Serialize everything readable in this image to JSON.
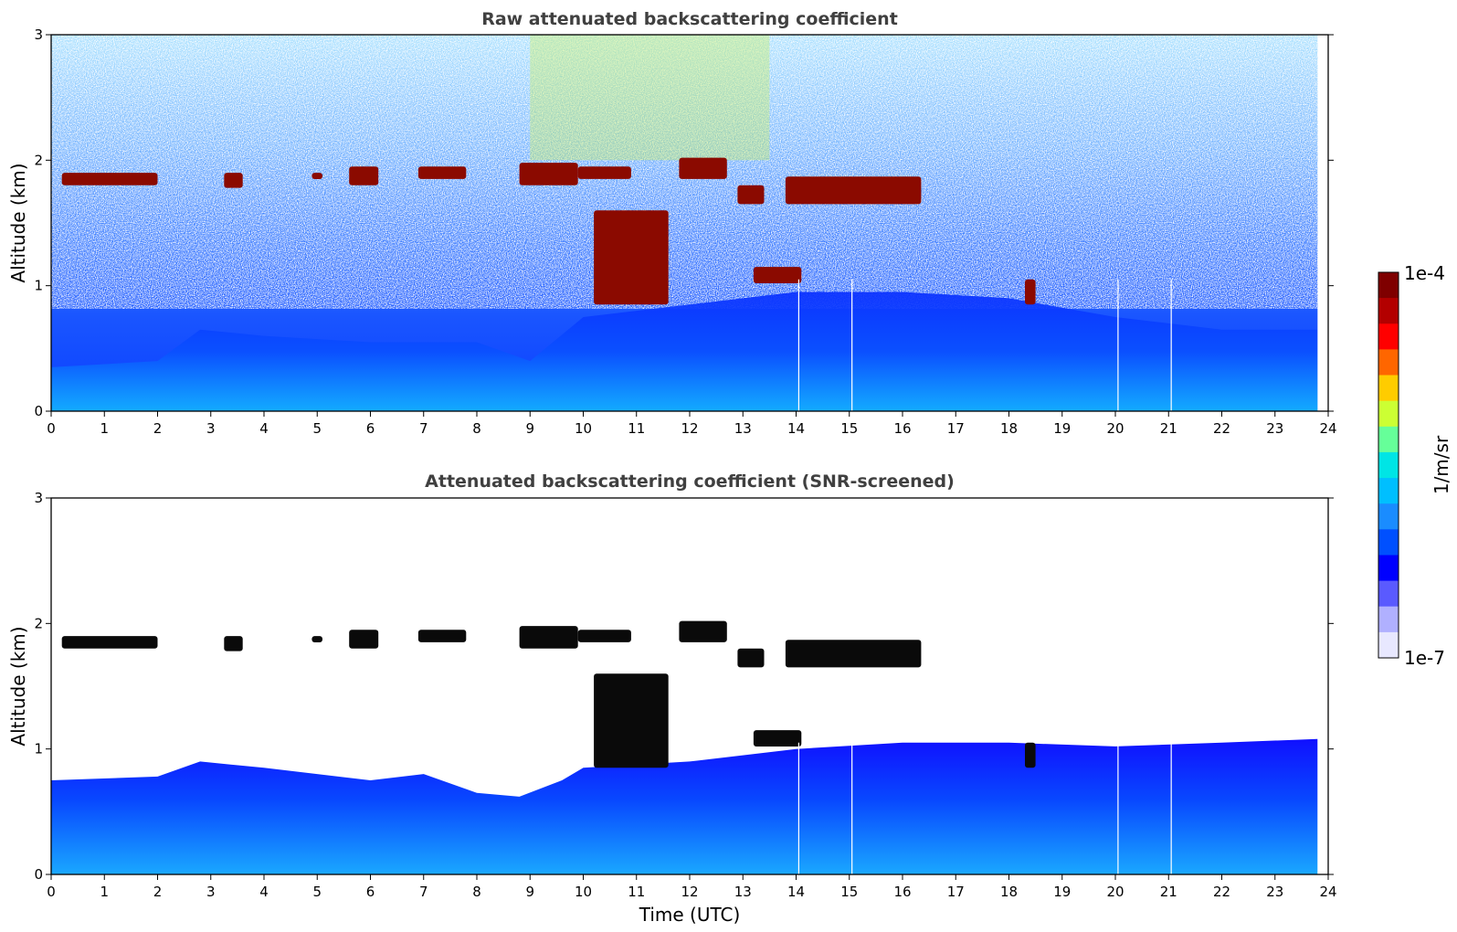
{
  "chart_data": [
    {
      "type": "heatmap",
      "title": "Raw attenuated backscattering coefficient",
      "xlabel": "",
      "ylabel": "Altitude (km)",
      "xlim": [
        0,
        24
      ],
      "ylim": [
        0,
        3
      ],
      "x_ticks": [
        "0",
        "1",
        "2",
        "3",
        "4",
        "5",
        "6",
        "7",
        "8",
        "9",
        "10",
        "11",
        "12",
        "13",
        "14",
        "15",
        "16",
        "17",
        "18",
        "19",
        "20",
        "21",
        "22",
        "23",
        "24"
      ],
      "y_ticks": [
        "0",
        "1",
        "2",
        "3"
      ],
      "data_extent_hours": 23.8,
      "gaps_hours": [
        14.05,
        15.05,
        20.05,
        21.05
      ],
      "boundary_layer_top_km": [
        [
          0,
          0.35
        ],
        [
          2,
          0.4
        ],
        [
          2.8,
          0.65
        ],
        [
          4,
          0.6
        ],
        [
          6,
          0.55
        ],
        [
          8,
          0.55
        ],
        [
          9,
          0.4
        ],
        [
          10,
          0.75
        ],
        [
          12,
          0.85
        ],
        [
          14,
          0.95
        ],
        [
          16,
          0.95
        ],
        [
          18,
          0.9
        ],
        [
          20,
          0.75
        ],
        [
          22,
          0.65
        ],
        [
          23.8,
          0.65
        ]
      ],
      "cloud_layers": [
        {
          "start": 0.2,
          "end": 2.0,
          "base_km": 1.8,
          "top_km": 1.9
        },
        {
          "start": 3.25,
          "end": 3.6,
          "base_km": 1.78,
          "top_km": 1.9
        },
        {
          "start": 4.9,
          "end": 5.1,
          "base_km": 1.85,
          "top_km": 1.9
        },
        {
          "start": 5.6,
          "end": 6.15,
          "base_km": 1.8,
          "top_km": 1.95
        },
        {
          "start": 6.9,
          "end": 7.8,
          "base_km": 1.85,
          "top_km": 1.95
        },
        {
          "start": 8.8,
          "end": 9.9,
          "base_km": 1.8,
          "top_km": 1.98
        },
        {
          "start": 9.9,
          "end": 10.9,
          "base_km": 1.85,
          "top_km": 1.95
        },
        {
          "start": 11.8,
          "end": 12.7,
          "base_km": 1.85,
          "top_km": 2.02
        },
        {
          "start": 12.9,
          "end": 13.4,
          "base_km": 1.65,
          "top_km": 1.8
        },
        {
          "start": 13.8,
          "end": 16.35,
          "base_km": 1.65,
          "top_km": 1.87
        },
        {
          "start": 13.2,
          "end": 14.1,
          "base_km": 1.02,
          "top_km": 1.15
        },
        {
          "start": 10.2,
          "end": 11.6,
          "base_km": 0.85,
          "top_km": 1.6
        },
        {
          "start": 18.3,
          "end": 18.5,
          "base_km": 0.85,
          "top_km": 1.05
        }
      ]
    },
    {
      "type": "heatmap",
      "title": "Attenuated backscattering coefficient (SNR-screened)",
      "xlabel": "Time (UTC)",
      "ylabel": "Altitude (km)",
      "xlim": [
        0,
        24
      ],
      "ylim": [
        0,
        3
      ],
      "x_ticks": [
        "0",
        "1",
        "2",
        "3",
        "4",
        "5",
        "6",
        "7",
        "8",
        "9",
        "10",
        "11",
        "12",
        "13",
        "14",
        "15",
        "16",
        "17",
        "18",
        "19",
        "20",
        "21",
        "22",
        "23",
        "24"
      ],
      "y_ticks": [
        "0",
        "1",
        "2",
        "3"
      ],
      "screened_top_km": [
        [
          0,
          0.75
        ],
        [
          2,
          0.78
        ],
        [
          2.8,
          0.9
        ],
        [
          4,
          0.85
        ],
        [
          6,
          0.75
        ],
        [
          7,
          0.8
        ],
        [
          8,
          0.65
        ],
        [
          8.8,
          0.62
        ],
        [
          9.6,
          0.75
        ],
        [
          10,
          0.85
        ],
        [
          12,
          0.9
        ],
        [
          14,
          1.0
        ],
        [
          16,
          1.05
        ],
        [
          18,
          1.05
        ],
        [
          20,
          1.02
        ],
        [
          22,
          1.05
        ],
        [
          23.8,
          1.08
        ]
      ]
    }
  ],
  "colorbar": {
    "label": "1/m/sr",
    "max_label": "1e-4",
    "min_label": "1e-7",
    "colors": [
      "#7f0000",
      "#b30000",
      "#ff0000",
      "#ff6600",
      "#ffcc00",
      "#ccff33",
      "#66ff99",
      "#00e5e5",
      "#00bfff",
      "#1a8cff",
      "#0050ff",
      "#0000ff",
      "#5a5aff",
      "#b0b0ff",
      "#e8e8ff"
    ]
  }
}
